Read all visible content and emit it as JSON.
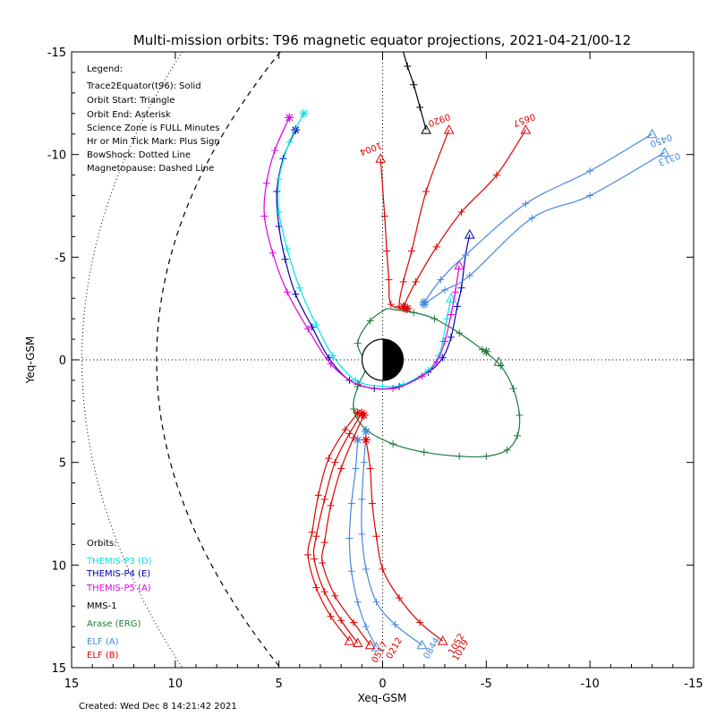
{
  "colors": {
    "themis_p3": "#00e5e5",
    "themis_p4": "#0000b0",
    "themis_p5": "#e000e0",
    "mms1": "#000000",
    "arase": "#1e7a3c",
    "elf_a": "#4488dd",
    "elf_b": "#dd0000"
  },
  "chart_data": {
    "type": "line",
    "title": "Multi-mission orbits: T96 magnetic equator projections, 2021-04-21/00-12",
    "xlabel": "Xeq-GSM",
    "ylabel": "Yeq-GSM",
    "xlim": [
      15,
      -15
    ],
    "ylim": [
      15,
      -15
    ],
    "xticks": [
      15,
      10,
      5,
      0,
      -5,
      -10,
      -15
    ],
    "yticks": [
      -15,
      -10,
      -5,
      0,
      5,
      10,
      15
    ],
    "legend_lines": [
      "Legend:",
      "Trace2Equator(t96): Solid",
      "Orbit Start: Triangle",
      "Orbit End: Asterisk",
      "Science Zone is FULL Minutes",
      "Hr or Min Tick Mark: Plus Sign",
      "BowShock: Dotted Line",
      "Magnetopause: Dashed Line"
    ],
    "orbits_heading": "Orbits:",
    "orbit_labels": [
      {
        "text": "THEMIS-P3 (D)",
        "color_key": "themis_p3"
      },
      {
        "text": "THEMIS-P4 (E)",
        "color_key": "themis_p4"
      },
      {
        "text": "THEMIS-P5 (A)",
        "color_key": "themis_p5"
      },
      {
        "text": "MMS-1",
        "color_key": "mms1"
      },
      {
        "text": "Arase (ERG)",
        "color_key": "arase"
      },
      {
        "text": "ELF (A)",
        "color_key": "elf_a"
      },
      {
        "text": "ELF (B)",
        "color_key": "elf_b"
      }
    ],
    "created": "Created: Wed Dec  8 14:21:42 2021",
    "series": [
      {
        "name": "THEMIS-P4 (E)",
        "color_key": "themis_p4",
        "points": [
          [
            4.2,
            -11.2
          ],
          [
            4.8,
            -9.8
          ],
          [
            5.1,
            -8.2
          ],
          [
            5.0,
            -6.5
          ],
          [
            4.7,
            -4.9
          ],
          [
            4.2,
            -3.2
          ],
          [
            3.4,
            -1.6
          ],
          [
            2.6,
            -0.1
          ],
          [
            1.6,
            1.0
          ],
          [
            0.4,
            1.4
          ],
          [
            -0.8,
            1.3
          ],
          [
            -2.2,
            0.6
          ],
          [
            -2.9,
            -0.1
          ],
          [
            -3.3,
            -1.1
          ],
          [
            -3.6,
            -2.6
          ],
          [
            -3.8,
            -3.5
          ],
          [
            -4.0,
            -5.1
          ],
          [
            -4.2,
            -6.1
          ]
        ],
        "start": [
          -4.2,
          -6.1
        ],
        "end": [
          4.2,
          -11.2
        ]
      },
      {
        "name": "THEMIS-P3 (D)",
        "color_key": "themis_p3",
        "points": [
          [
            3.8,
            -12.0
          ],
          [
            4.5,
            -10.6
          ],
          [
            5.0,
            -8.8
          ],
          [
            5.0,
            -7.2
          ],
          [
            4.6,
            -5.4
          ],
          [
            4.0,
            -3.5
          ],
          [
            3.2,
            -1.7
          ],
          [
            2.4,
            -0.2
          ],
          [
            1.3,
            1.0
          ],
          [
            0.0,
            1.3
          ],
          [
            -1.0,
            1.2
          ],
          [
            -2.2,
            0.5
          ],
          [
            -2.7,
            -0.2
          ],
          [
            -2.9,
            -0.9
          ],
          [
            -3.1,
            -2.0
          ],
          [
            -3.3,
            -3.0
          ]
        ],
        "start": [
          -3.3,
          -3.0
        ],
        "end": [
          3.8,
          -12.0
        ]
      },
      {
        "name": "THEMIS-P5 (A)",
        "color_key": "themis_p5",
        "points": [
          [
            4.5,
            -11.8
          ],
          [
            5.2,
            -10.2
          ],
          [
            5.6,
            -8.6
          ],
          [
            5.7,
            -7.0
          ],
          [
            5.3,
            -5.2
          ],
          [
            4.6,
            -3.3
          ],
          [
            3.6,
            -1.5
          ],
          [
            2.5,
            0.2
          ],
          [
            1.2,
            1.2
          ],
          [
            -0.5,
            1.4
          ],
          [
            -1.9,
            0.8
          ],
          [
            -2.6,
            0.1
          ],
          [
            -3.0,
            -0.9
          ],
          [
            -3.3,
            -2.2
          ],
          [
            -3.5,
            -3.3
          ],
          [
            -3.7,
            -4.6
          ]
        ],
        "start": [
          -3.7,
          -4.6
        ],
        "end": [
          4.5,
          -11.8
        ]
      },
      {
        "name": "MMS-1",
        "color_key": "mms1",
        "points": [
          [
            -1.0,
            -15.0
          ],
          [
            -1.2,
            -14.3
          ],
          [
            -1.5,
            -13.4
          ],
          [
            -1.8,
            -12.3
          ],
          [
            -2.1,
            -11.2
          ]
        ],
        "start": [
          -2.1,
          -11.2
        ],
        "end": null
      },
      {
        "name": "Arase (ERG)",
        "color_key": "arase",
        "points": [
          [
            -0.2,
            -2.5
          ],
          [
            -1.5,
            -2.3
          ],
          [
            -2.5,
            -2.0
          ],
          [
            -3.7,
            -1.3
          ],
          [
            -4.8,
            -0.5
          ],
          [
            -5.7,
            0.3
          ],
          [
            -6.3,
            1.4
          ],
          [
            -6.6,
            2.7
          ],
          [
            -6.5,
            3.7
          ],
          [
            -6.0,
            4.4
          ],
          [
            -5.0,
            4.7
          ],
          [
            -3.7,
            4.7
          ],
          [
            -2.0,
            4.5
          ],
          [
            -0.5,
            4.1
          ],
          [
            0.8,
            3.4
          ],
          [
            1.4,
            2.4
          ],
          [
            1.2,
            1.3
          ],
          [
            0.8,
            0.3
          ],
          [
            1.2,
            -0.8
          ],
          [
            0.6,
            -1.9
          ],
          [
            -0.2,
            -2.5
          ]
        ],
        "start": [
          -5.6,
          0.1
        ],
        "end": [
          -5.0,
          -0.4
        ]
      },
      {
        "name": "ELF (A) pass 1",
        "color_key": "elf_a",
        "points": [
          [
            0.8,
            3.5
          ],
          [
            0.9,
            5.0
          ],
          [
            1.0,
            6.8
          ],
          [
            1.0,
            8.5
          ],
          [
            0.8,
            10.2
          ],
          [
            0.3,
            11.8
          ],
          [
            -0.6,
            12.9
          ],
          [
            -1.9,
            13.9
          ]
        ],
        "start": [
          -1.9,
          13.9
        ],
        "end": [
          0.8,
          3.5
        ]
      },
      {
        "name": "ELF (A) pass 2",
        "color_key": "elf_a",
        "points": [
          [
            1.2,
            3.9
          ],
          [
            1.3,
            5.3
          ],
          [
            1.5,
            7.0
          ],
          [
            1.6,
            8.7
          ],
          [
            1.5,
            10.3
          ],
          [
            1.2,
            11.8
          ],
          [
            0.8,
            13.0
          ],
          [
            0.3,
            14.0
          ]
        ],
        "start": [
          0.3,
          14.0
        ],
        "end": [
          1.2,
          3.9
        ]
      },
      {
        "name": "ELF (B) pass 1",
        "color_key": "elf_b",
        "points": [
          [
            1.2,
            2.6
          ],
          [
            1.8,
            3.4
          ],
          [
            2.6,
            4.8
          ],
          [
            3.1,
            6.6
          ],
          [
            3.4,
            8.4
          ],
          [
            3.6,
            9.5
          ],
          [
            3.2,
            11.1
          ],
          [
            2.5,
            12.5
          ],
          [
            1.6,
            13.7
          ]
        ],
        "start": [
          1.6,
          13.7
        ],
        "end": [
          1.2,
          2.6
        ]
      },
      {
        "name": "ELF (B) pass 2",
        "color_key": "elf_b",
        "points": [
          [
            1.0,
            2.6
          ],
          [
            1.6,
            3.6
          ],
          [
            2.3,
            5.0
          ],
          [
            2.8,
            6.8
          ],
          [
            3.2,
            8.6
          ],
          [
            3.3,
            9.7
          ],
          [
            2.8,
            11.3
          ],
          [
            2.0,
            12.7
          ],
          [
            1.2,
            13.8
          ]
        ],
        "start": [
          1.2,
          13.8
        ],
        "end": [
          1.0,
          2.6
        ]
      },
      {
        "name": "ELF (B) pass 3",
        "color_key": "elf_b",
        "points": [
          [
            0.9,
            2.7
          ],
          [
            1.4,
            3.8
          ],
          [
            2.0,
            5.3
          ],
          [
            2.5,
            7.1
          ],
          [
            2.8,
            8.9
          ],
          [
            2.9,
            9.9
          ],
          [
            2.3,
            11.5
          ],
          [
            1.4,
            12.8
          ],
          [
            0.6,
            13.9
          ]
        ],
        "start": [
          0.6,
          13.9
        ],
        "end": [
          0.9,
          2.7
        ]
      },
      {
        "name": "ELF (B) pass 4",
        "color_key": "elf_b",
        "points": [
          [
            0.8,
            3.9
          ],
          [
            0.6,
            5.3
          ],
          [
            0.5,
            7.0
          ],
          [
            0.3,
            8.6
          ],
          [
            0.0,
            10.2
          ],
          [
            -0.8,
            11.6
          ],
          [
            -1.8,
            12.8
          ],
          [
            -2.9,
            13.7
          ]
        ],
        "start": [
          -2.9,
          13.7
        ],
        "end": [
          0.8,
          3.9
        ]
      },
      {
        "name": "ELF (B) dayside 1004",
        "color_key": "elf_b",
        "points": [
          [
            0.1,
            -9.8
          ],
          [
            -0.1,
            -7.0
          ],
          [
            -0.2,
            -5.3
          ],
          [
            -0.3,
            -3.9
          ],
          [
            -0.4,
            -2.7
          ],
          [
            -1.1,
            -2.5
          ]
        ],
        "start": [
          0.1,
          -9.8
        ],
        "end": [
          -1.1,
          -2.5
        ]
      },
      {
        "name": "ELF (B) dayside 0920",
        "color_key": "elf_b",
        "points": [
          [
            -3.2,
            -11.2
          ],
          [
            -2.1,
            -8.2
          ],
          [
            -1.4,
            -5.3
          ],
          [
            -1.0,
            -3.8
          ],
          [
            -0.8,
            -2.6
          ],
          [
            -1.2,
            -2.5
          ]
        ],
        "start": [
          -3.2,
          -11.2
        ],
        "end": [
          -1.2,
          -2.5
        ]
      },
      {
        "name": "ELF (B) dayside 0657",
        "color_key": "elf_b",
        "points": [
          [
            -6.9,
            -11.2
          ],
          [
            -5.5,
            -9.0
          ],
          [
            -3.8,
            -7.2
          ],
          [
            -2.6,
            -5.5
          ],
          [
            -1.6,
            -3.8
          ],
          [
            -1.0,
            -2.6
          ]
        ],
        "start": [
          -6.9,
          -11.2
        ],
        "end": [
          -1.0,
          -2.6
        ]
      },
      {
        "name": "ELF (A) dayside 0450",
        "color_key": "elf_a",
        "points": [
          [
            -13.0,
            -11.0
          ],
          [
            -10.0,
            -9.2
          ],
          [
            -6.9,
            -7.6
          ],
          [
            -4.0,
            -5.1
          ],
          [
            -2.8,
            -3.9
          ],
          [
            -2.0,
            -2.8
          ]
        ],
        "start": [
          -13.0,
          -11.0
        ],
        "end": [
          -2.0,
          -2.8
        ]
      },
      {
        "name": "ELF (A) dayside 0313",
        "color_key": "elf_a",
        "points": [
          [
            -13.6,
            -10.1
          ],
          [
            -10.0,
            -8.0
          ],
          [
            -7.2,
            -6.9
          ],
          [
            -4.2,
            -4.1
          ],
          [
            -3.0,
            -3.4
          ],
          [
            -2.0,
            -2.7
          ]
        ],
        "start": [
          -13.6,
          -10.1
        ],
        "end": [
          -2.0,
          -2.7
        ]
      }
    ],
    "pass_labels": [
      {
        "text": "1004",
        "color_key": "elf_b",
        "x": 0.1,
        "y": -10.6
      },
      {
        "text": "0920",
        "color_key": "elf_b",
        "x": -3.2,
        "y": -12.0
      },
      {
        "text": "0657",
        "color_key": "elf_b",
        "x": -7.3,
        "y": -12.0
      },
      {
        "text": "0450",
        "color_key": "elf_a",
        "x": -13.9,
        "y": -11.0
      },
      {
        "text": "0313",
        "color_key": "elf_a",
        "x": -14.3,
        "y": -10.1
      },
      {
        "text": "1052",
        "color_key": "elf_b",
        "x": -3.4,
        "y": 14.4
      },
      {
        "text": "0844",
        "color_key": "elf_a",
        "x": -2.2,
        "y": 14.6
      },
      {
        "text": "1019",
        "color_key": "elf_b",
        "x": -3.6,
        "y": 14.7
      },
      {
        "text": "0212",
        "color_key": "elf_b",
        "x": -0.4,
        "y": 14.6
      },
      {
        "text": "0517",
        "color_key": "elf_b",
        "x": 0.3,
        "y": 14.8
      }
    ]
  }
}
